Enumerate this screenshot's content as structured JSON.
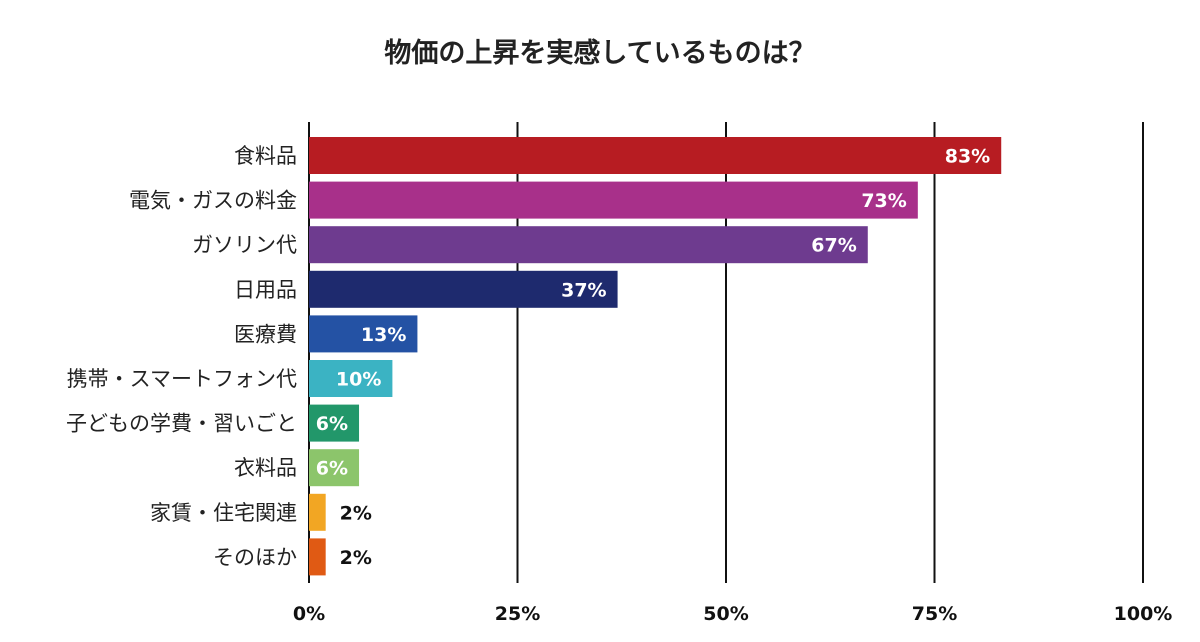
{
  "chart_data": {
    "type": "bar",
    "orientation": "horizontal",
    "title": "物価の上昇を実感しているものは？",
    "xlabel": "",
    "ylabel": "",
    "xlim": [
      0,
      100
    ],
    "ticks": [
      {
        "value": 0,
        "label": "0%"
      },
      {
        "value": 25,
        "label": "25%"
      },
      {
        "value": 50,
        "label": "50%"
      },
      {
        "value": 75,
        "label": "75%"
      },
      {
        "value": 100,
        "label": "100%"
      }
    ],
    "grid": true,
    "bars": [
      {
        "category": "食料品",
        "value": 83,
        "label": "83%",
        "color": "#b71c22"
      },
      {
        "category": "電気・ガスの料金",
        "value": 73,
        "label": "73%",
        "color": "#a8308a"
      },
      {
        "category": "ガソリン代",
        "value": 67,
        "label": "67%",
        "color": "#6e3b8f"
      },
      {
        "category": "日用品",
        "value": 37,
        "label": "37%",
        "color": "#1e2a6e"
      },
      {
        "category": "医療費",
        "value": 13,
        "label": "13%",
        "color": "#2452a4"
      },
      {
        "category": "携帯・スマートフォン代",
        "value": 10,
        "label": "10%",
        "color": "#3bb3c3"
      },
      {
        "category": "子どもの学費・習いごと",
        "value": 6,
        "label": "6%",
        "color": "#22976a"
      },
      {
        "category": "衣料品",
        "value": 6,
        "label": "6%",
        "color": "#8cc56b"
      },
      {
        "category": "家賃・住宅関連",
        "value": 2,
        "label": "2%",
        "color": "#f2a623"
      },
      {
        "category": "そのほか",
        "value": 2,
        "label": "2%",
        "color": "#e05a14"
      }
    ]
  }
}
